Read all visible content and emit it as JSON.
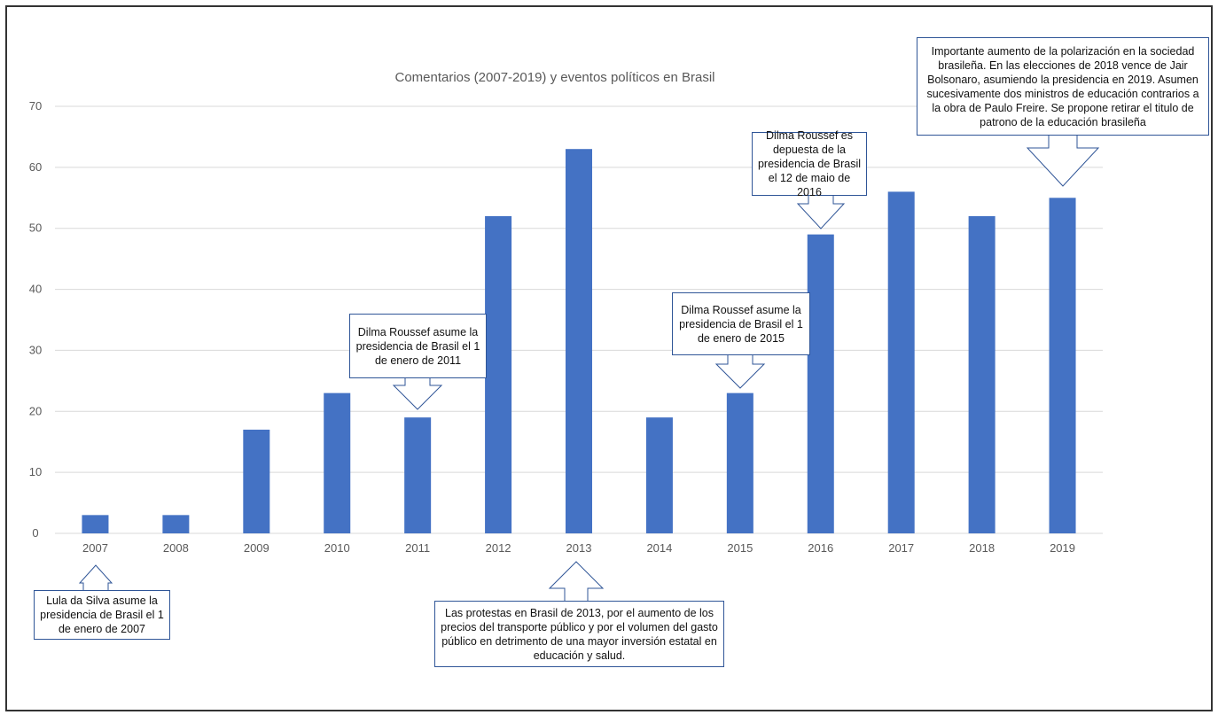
{
  "chart_data": {
    "type": "bar",
    "title": "Comentarios (2007-2019)  y eventos políticos en Brasil",
    "categories": [
      "2007",
      "2008",
      "2009",
      "2010",
      "2011",
      "2012",
      "2013",
      "2014",
      "2015",
      "2016",
      "2017",
      "2018",
      "2019"
    ],
    "values": [
      3,
      3,
      17,
      23,
      19,
      52,
      63,
      19,
      23,
      49,
      56,
      52,
      55
    ],
    "ylim": [
      0,
      70
    ],
    "yticks": [
      "0",
      "10",
      "20",
      "30",
      "40",
      "50",
      "60",
      "70"
    ],
    "grid": true,
    "bar_color": "#4472c4"
  },
  "annotations": {
    "a2007": "Lula da Silva asume la presidencia de Brasil el 1 de enero de 2007",
    "a2011": "Dilma Roussef asume la presidencia de Brasil el 1 de enero de 2011",
    "a2013": "Las protestas en Brasil de 2013, por el aumento de los precios del transporte público y por el volumen del gasto público en detrimento de una mayor inversión estatal en educación y salud.",
    "a2015": "Dilma Roussef asume la presidencia de Brasil el 1 de enero de 2015",
    "a2016": "Dilma Roussef es depuesta de la presidencia de Brasil el 12 de maio de 2016",
    "a2019": "Importante aumento de la polarización en la sociedad brasileña.  En las elecciones de 2018 vence de Jair Bolsonaro, asumiendo la presidencia en 2019. Asumen sucesivamente dos ministros de educación contrarios a la obra de Paulo Freire. Se propone retirar el titulo de patrono de la educación brasileña"
  },
  "colors": {
    "callout_border": "#2f5597",
    "gridline": "#d9d9d9",
    "axis_text": "#595959"
  }
}
